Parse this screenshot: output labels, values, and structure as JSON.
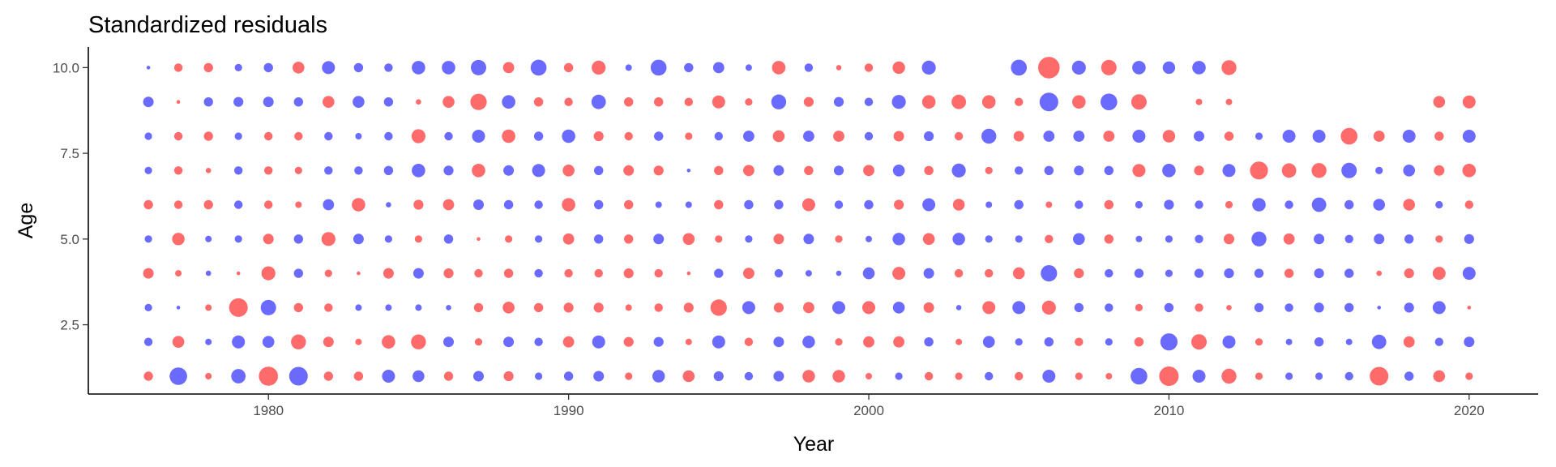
{
  "chart_data": {
    "type": "scatter",
    "title": "Standardized residuals",
    "xlabel": "Year",
    "ylabel": "Age",
    "xlim": [
      1974,
      2022.3
    ],
    "ylim": [
      0.48,
      10.6
    ],
    "x_ticks": [
      1980,
      1990,
      2000,
      2010,
      2020
    ],
    "x_tick_labels": [
      "1980",
      "1990",
      "2000",
      "2010",
      "2020"
    ],
    "y_ticks": [
      2.5,
      5.0,
      7.5,
      10.0
    ],
    "y_tick_labels": [
      "2.5",
      "5.0",
      "7.5",
      "10.0"
    ],
    "grid": false,
    "legend": "none",
    "colors": {
      "positive": "#ff5a5a",
      "negative": "#5a5aff"
    },
    "years": [
      1976,
      1977,
      1978,
      1979,
      1980,
      1981,
      1982,
      1983,
      1984,
      1985,
      1986,
      1987,
      1988,
      1989,
      1990,
      1991,
      1992,
      1993,
      1994,
      1995,
      1996,
      1997,
      1998,
      1999,
      2000,
      2001,
      2002,
      2003,
      2004,
      2005,
      2006,
      2007,
      2008,
      2009,
      2010,
      2011,
      2012,
      2013,
      2014,
      2015,
      2016,
      2017,
      2018,
      2019,
      2020
    ],
    "ages": [
      1,
      2,
      3,
      4,
      5,
      6,
      7,
      8,
      9,
      10
    ],
    "residuals": [
      [
        0.6,
        -2.2,
        0.3,
        -1.5,
        2.6,
        -2.5,
        0.6,
        0.6,
        -1.2,
        -1.0,
        0.6,
        -0.8,
        0.7,
        -0.4,
        -0.6,
        -0.8,
        0.4,
        -1.1,
        1.0,
        -0.7,
        -0.5,
        -0.8,
        1.1,
        1.1,
        0.3,
        -0.4,
        0.5,
        0.4,
        -0.5,
        0.5,
        -1.2,
        0.4,
        0.3,
        -2.0,
        2.7,
        -1.2,
        1.6,
        0.4,
        -0.4,
        -0.4,
        -0.5,
        2.5,
        -0.6,
        1.0,
        0.4
      ],
      [
        -0.5,
        1.0,
        -0.3,
        -1.2,
        -1.0,
        1.6,
        0.8,
        0.3,
        1.3,
        1.6,
        -0.8,
        0.4,
        -0.8,
        -0.5,
        0.9,
        -1.2,
        0.7,
        -0.7,
        0.3,
        -1.2,
        0.5,
        -0.8,
        -1.1,
        0.4,
        0.9,
        0.9,
        -0.6,
        0.3,
        -1.0,
        -0.4,
        -0.6,
        0.5,
        -0.4,
        0.6,
        -2.1,
        1.7,
        -1.2,
        0.4,
        -0.3,
        -0.6,
        -0.3,
        -1.5,
        0.9,
        -0.5,
        -0.8
      ],
      [
        -0.4,
        -0.1,
        0.3,
        2.5,
        -1.7,
        0.6,
        0.5,
        -0.3,
        -0.3,
        -0.3,
        -0.2,
        0.6,
        1.0,
        0.6,
        0.7,
        0.7,
        0.3,
        0.5,
        0.7,
        1.9,
        -1.2,
        0.7,
        0.9,
        -1.2,
        1.2,
        -1.0,
        0.8,
        -0.2,
        1.2,
        -1.2,
        1.4,
        -0.6,
        -0.5,
        0.4,
        -0.6,
        0.5,
        0.2,
        -0.6,
        -0.5,
        -0.7,
        -0.6,
        -0.1,
        -0.7,
        -1.2,
        0.1
      ],
      [
        0.8,
        0.3,
        -0.2,
        0.1,
        1.4,
        -0.6,
        0.4,
        0.1,
        0.8,
        -0.8,
        0.7,
        0.5,
        0.6,
        -0.5,
        0.5,
        0.5,
        0.7,
        0.5,
        0.1,
        -0.6,
        0.9,
        -0.5,
        -0.3,
        -0.2,
        -1.0,
        1.2,
        -0.8,
        0.5,
        0.5,
        1.0,
        -1.9,
        0.7,
        -0.5,
        -0.6,
        -0.4,
        -0.6,
        -0.7,
        -0.6,
        0.6,
        -0.7,
        -0.6,
        0.2,
        0.7,
        1.2,
        -1.2
      ],
      [
        -0.4,
        1.1,
        -0.3,
        -0.4,
        0.8,
        -0.6,
        1.4,
        -0.8,
        -0.4,
        0.4,
        -0.6,
        0.1,
        0.4,
        -0.4,
        0.9,
        -0.6,
        0.6,
        -0.8,
        1.0,
        0.4,
        -0.4,
        0.8,
        -0.8,
        0.4,
        -0.3,
        -1.1,
        1.0,
        -1.1,
        -0.4,
        -0.4,
        0.5,
        -1.0,
        0.6,
        -0.3,
        -0.4,
        -0.5,
        0.8,
        -1.6,
        0.9,
        -0.8,
        -0.5,
        -0.8,
        -0.6,
        0.4,
        -0.7
      ],
      [
        0.6,
        0.5,
        0.6,
        -0.5,
        0.5,
        0.3,
        -0.9,
        1.3,
        -0.2,
        0.7,
        0.9,
        -0.8,
        -0.6,
        -0.5,
        1.3,
        -0.6,
        0.6,
        -0.3,
        -0.3,
        0.6,
        -0.6,
        -0.6,
        1.2,
        -0.5,
        -0.6,
        0.7,
        -1.2,
        1.0,
        -0.3,
        -0.6,
        0.3,
        -0.5,
        0.6,
        -0.4,
        -0.7,
        -0.5,
        0.4,
        -1.3,
        -0.5,
        -1.5,
        -0.6,
        -1.0,
        1.0,
        -0.4,
        0.5
      ],
      [
        -0.4,
        0.5,
        0.2,
        -0.5,
        0.5,
        0.4,
        -0.5,
        -0.5,
        -0.6,
        -1.3,
        -0.7,
        1.3,
        -0.8,
        -1.2,
        1.0,
        -0.6,
        0.8,
        0.7,
        -0.1,
        0.6,
        0.9,
        -0.8,
        0.6,
        -0.7,
        0.9,
        -1.0,
        0.6,
        -1.4,
        0.4,
        -0.5,
        -0.6,
        -0.7,
        -0.6,
        1.2,
        -1.3,
        0.7,
        -1.2,
        2.3,
        1.5,
        1.6,
        -1.7,
        -0.4,
        -1.0,
        0.8,
        1.3
      ],
      [
        -0.4,
        0.5,
        0.6,
        -0.4,
        0.5,
        0.5,
        -0.5,
        -0.3,
        -0.5,
        1.4,
        -0.5,
        -1.2,
        1.3,
        -0.6,
        -1.3,
        0.7,
        0.5,
        -0.6,
        0.4,
        -0.5,
        -0.9,
        1.0,
        -0.9,
        0.9,
        -0.5,
        0.8,
        -0.7,
        0.5,
        -1.6,
        0.8,
        -0.9,
        -0.9,
        0.9,
        -1.2,
        1.1,
        -0.8,
        0.6,
        -0.4,
        -1.2,
        -1.2,
        2.0,
        0.9,
        -1.2,
        0.6,
        -1.2
      ],
      [
        -0.8,
        0.1,
        -0.6,
        -0.7,
        -0.8,
        -0.6,
        1.0,
        -1.0,
        -0.6,
        0.2,
        1.0,
        1.9,
        -1.3,
        0.6,
        0.5,
        -1.5,
        0.6,
        0.6,
        0.5,
        1.2,
        0.4,
        -1.6,
        0.7,
        -0.7,
        -0.5,
        -1.4,
        1.3,
        1.5,
        1.3,
        0.5,
        -2.5,
        1.3,
        -2.0,
        1.7,
        0.0,
        0.3,
        0.3,
        0.0,
        0.0,
        0.0,
        0.0,
        0.0,
        0.0,
        1.0,
        1.2
      ],
      [
        -0.1,
        0.5,
        0.6,
        -0.4,
        -0.6,
        1.0,
        -1.2,
        -0.6,
        -0.5,
        -1.3,
        -1.3,
        -1.7,
        0.9,
        -1.8,
        0.6,
        1.4,
        -0.3,
        -1.8,
        -0.6,
        -0.9,
        -0.3,
        1.3,
        -0.5,
        0.2,
        0.5,
        1.1,
        -1.4,
        0.0,
        0.0,
        -1.8,
        3.3,
        -1.4,
        1.7,
        -1.3,
        -1.1,
        -1.3,
        1.6,
        0.0,
        0.0,
        0.0,
        0.0,
        0.0,
        0.0,
        0.0,
        0.0
      ]
    ]
  }
}
